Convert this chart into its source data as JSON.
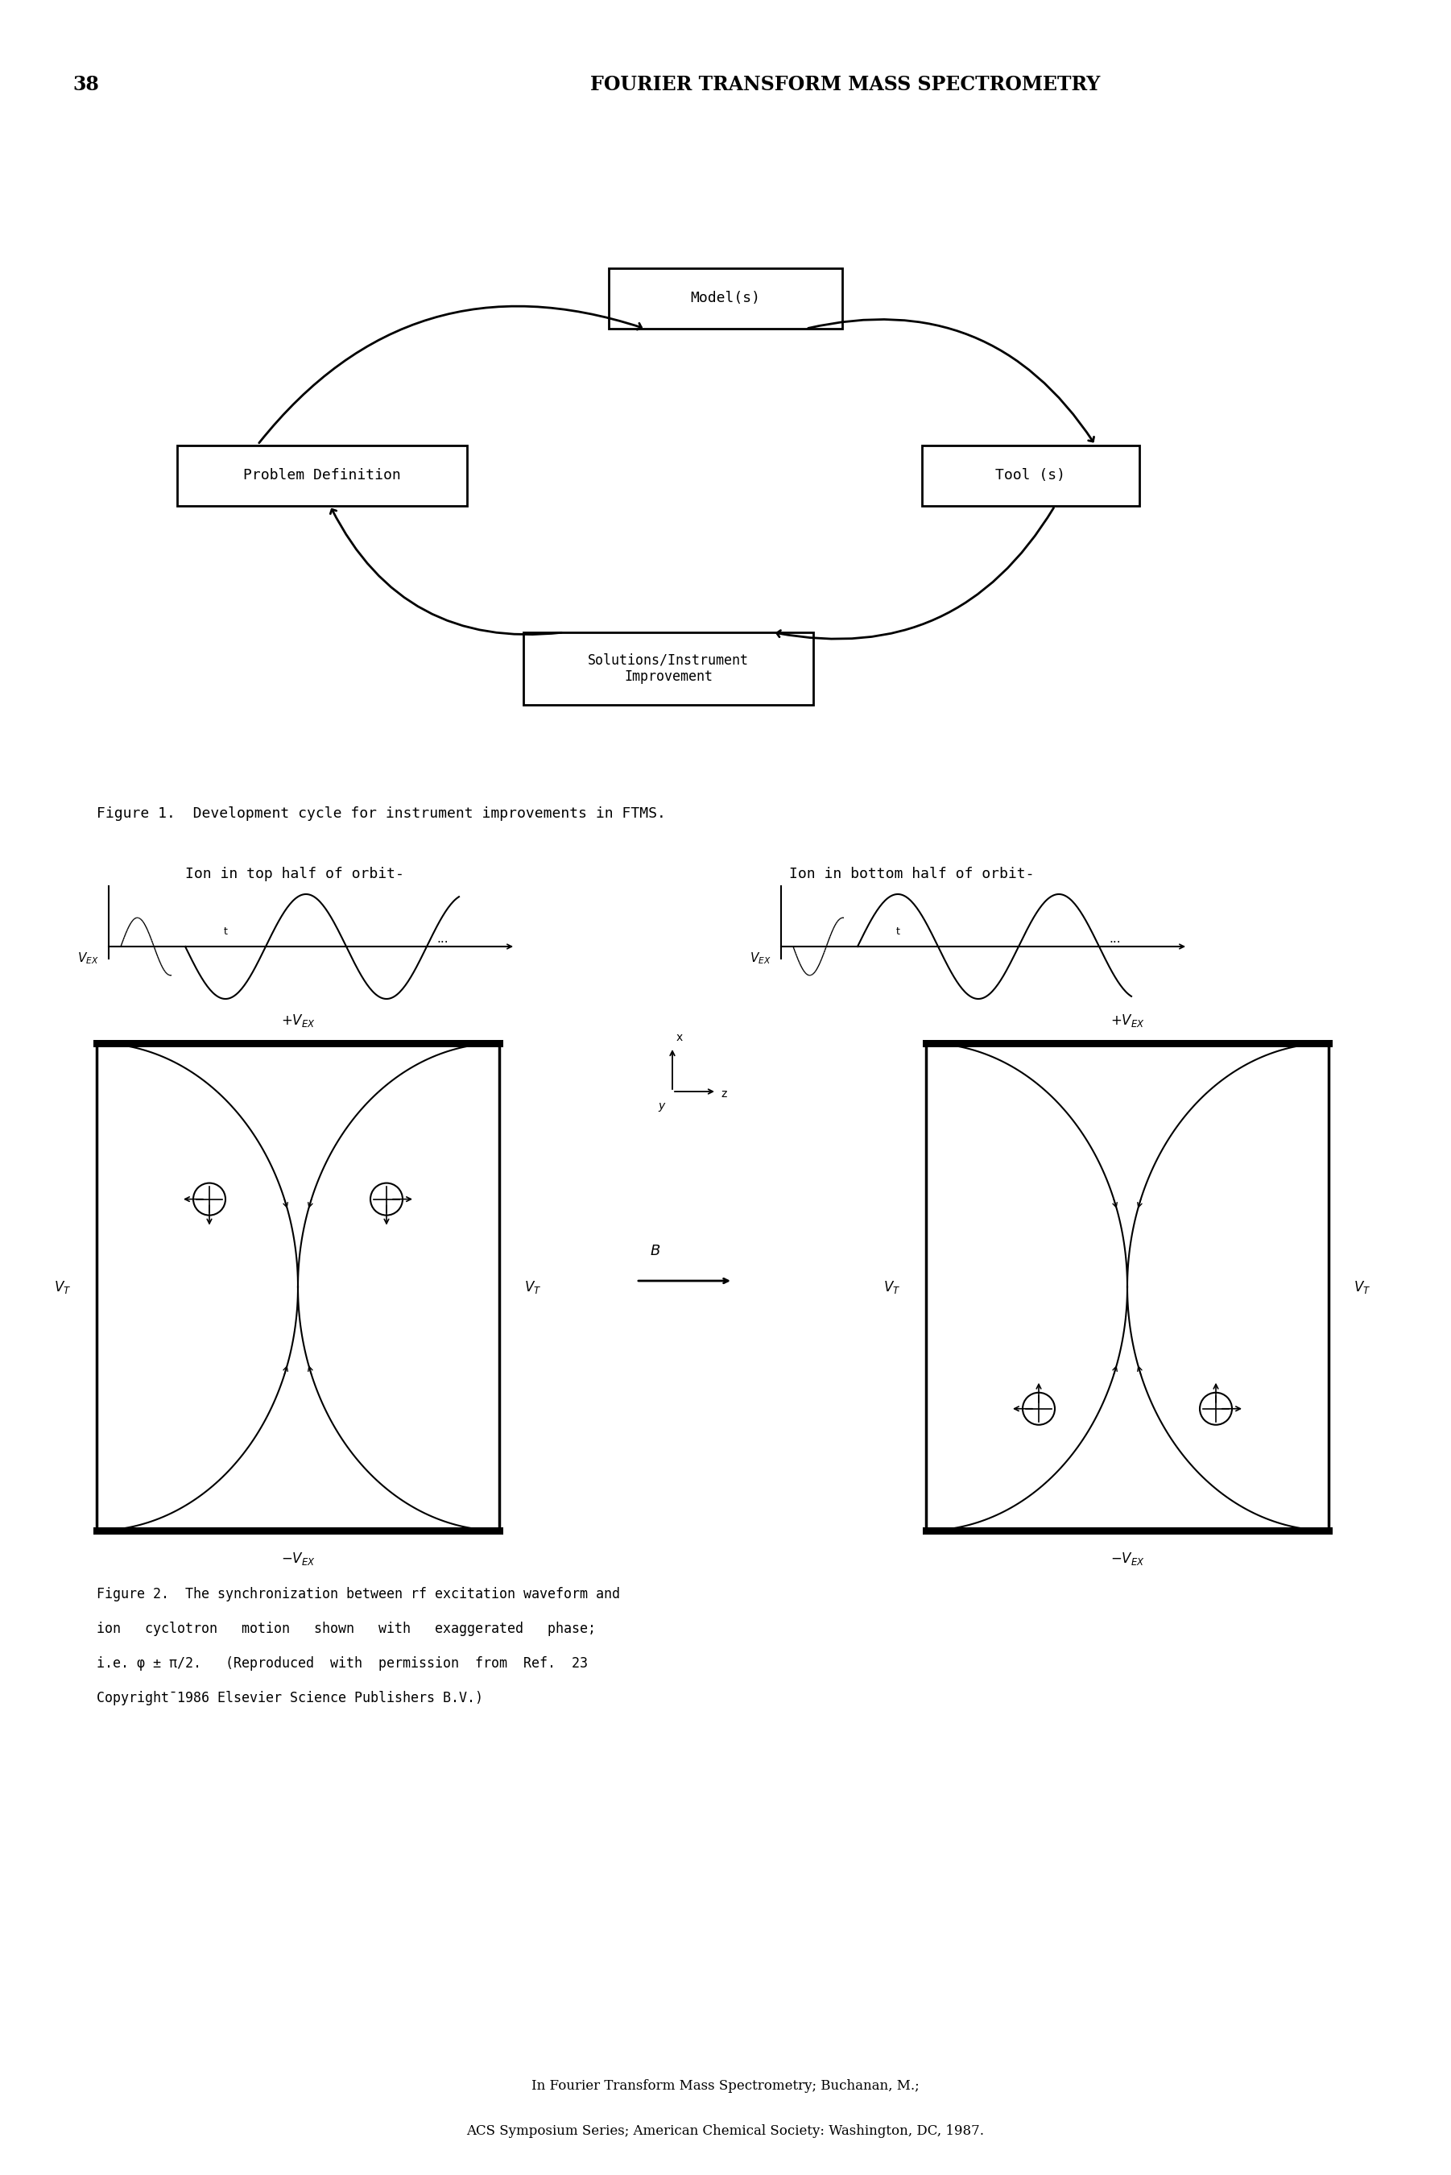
{
  "page_number": "38",
  "header_text": "FOURIER TRANSFORM MASS SPECTROMETRY",
  "fig1_caption": "Figure 1.  Development cycle for instrument improvements in FTMS.",
  "fig2_cap1": "Figure 2.  The synchronization between rf excitation waveform and",
  "fig2_cap2": "ion   cyclotron   motion   shown   with   exaggerated   phase;",
  "fig2_cap3": "i.e. φ ± π/2.   (Reproduced  with  permission  from  Ref.  23",
  "fig2_cap4": "Copyright¯1986 Elsevier Science Publishers B.V.)",
  "footer_line1": "In Fourier Transform Mass Spectrometry; Buchanan, M.;",
  "footer_line2": "ACS Symposium Series; American Chemical Society: Washington, DC, 1987.",
  "left_label": "Ion in top half of orbit-",
  "right_label": "Ion in bottom half of orbit-",
  "bg_color": "#ffffff"
}
